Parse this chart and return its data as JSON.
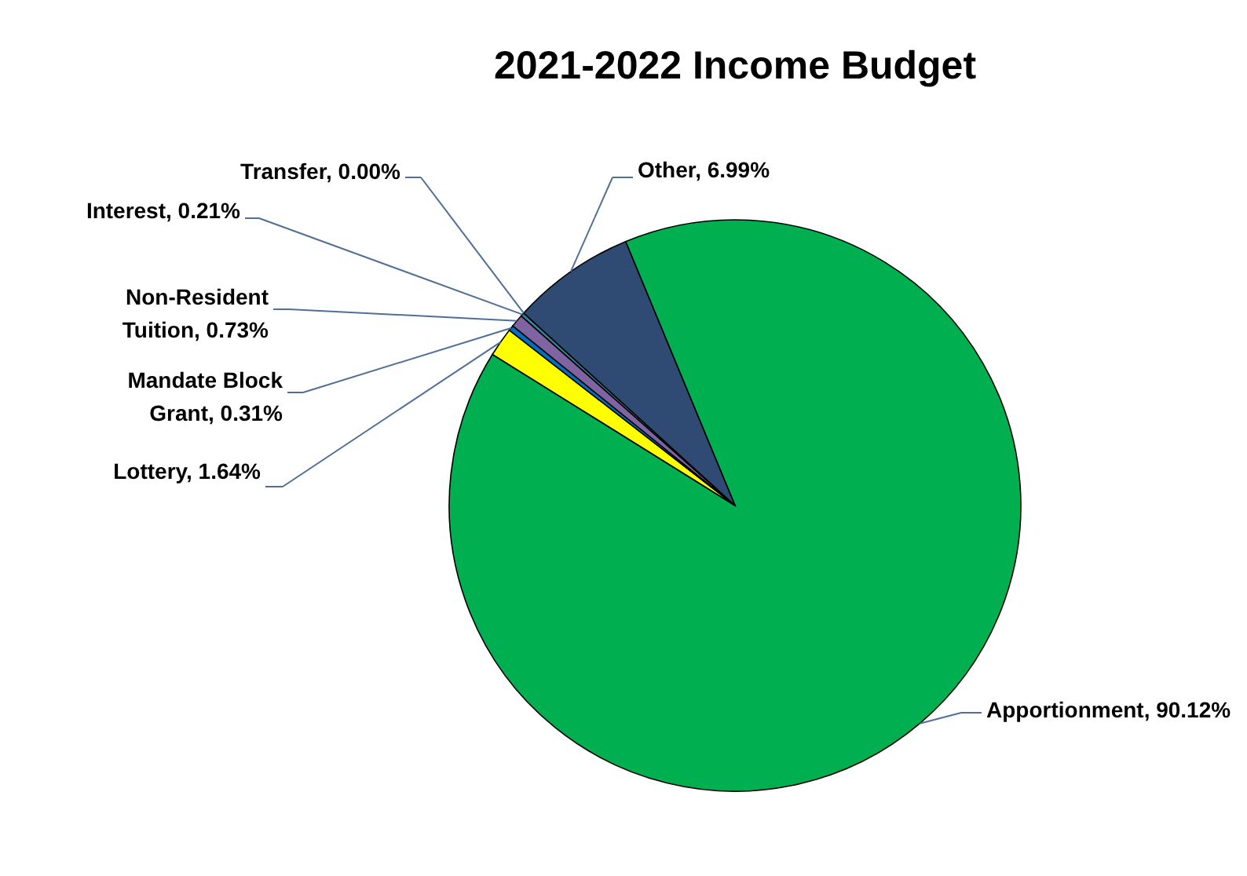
{
  "chart_data": {
    "type": "pie",
    "title": "2021-2022 Income Budget",
    "categories": [
      "Apportionment",
      "Lottery",
      "Mandate Block Grant",
      "Non-Resident Tuition",
      "Interest",
      "Transfer",
      "Other"
    ],
    "values": [
      90.12,
      1.64,
      0.31,
      0.73,
      0.21,
      0.0,
      6.99
    ],
    "value_labels": [
      "90.12%",
      "1.64%",
      "0.31%",
      "0.73%",
      "0.21%",
      "0.00%",
      "6.99%"
    ],
    "colors": [
      "#00b050",
      "#ffff00",
      "#0070c0",
      "#8064a2",
      "#31859c",
      "#4f81bd",
      "#2f4b73"
    ]
  }
}
